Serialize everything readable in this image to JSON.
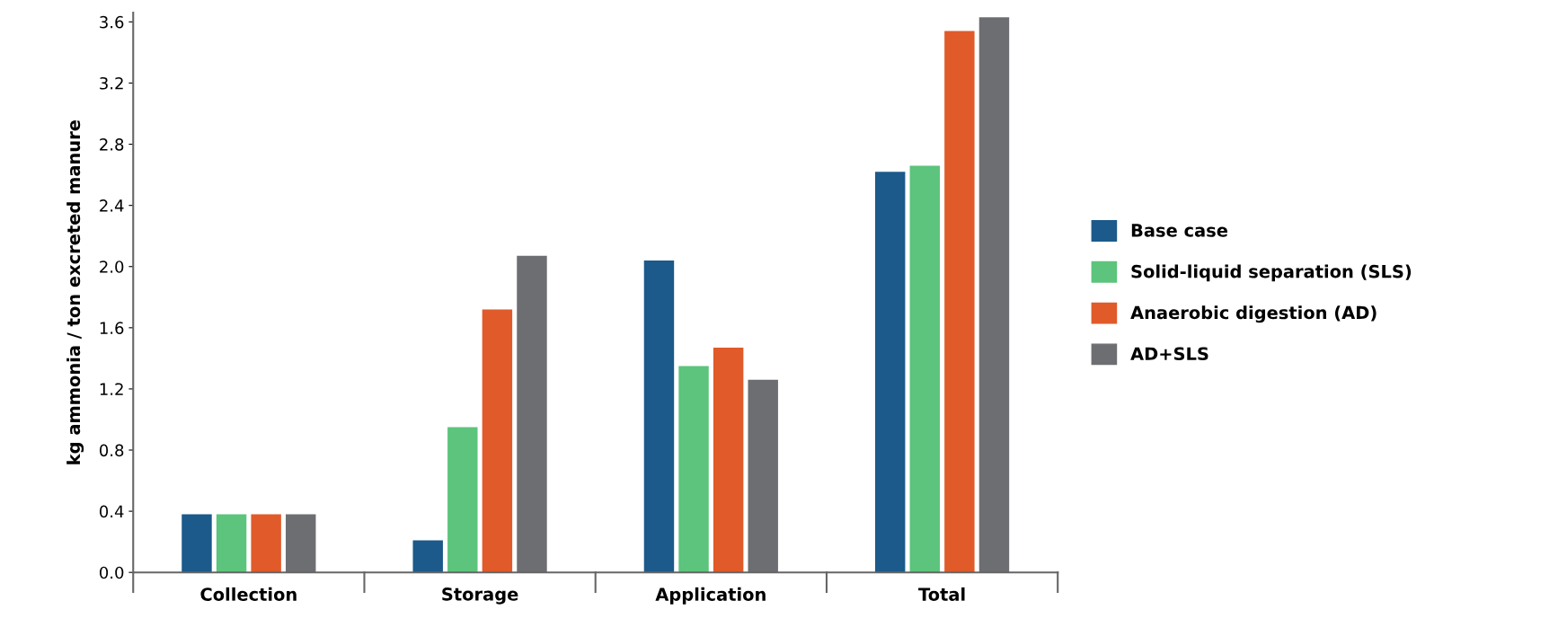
{
  "chart_data": {
    "type": "bar",
    "ylabel": "kg ammonia / ton excreted manure",
    "categories": [
      "Collection",
      "Storage",
      "Application",
      "Total"
    ],
    "series": [
      {
        "name": "Base case",
        "color": "#1b5a8a",
        "values": [
          0.38,
          0.21,
          2.04,
          2.62
        ]
      },
      {
        "name": "Solid-liquid separation (SLS)",
        "color": "#5cc47c",
        "values": [
          0.38,
          0.95,
          1.35,
          2.66
        ]
      },
      {
        "name": "Anaerobic digestion (AD)",
        "color": "#e05a2a",
        "values": [
          0.38,
          1.72,
          1.47,
          3.54
        ]
      },
      {
        "name": "AD+SLS",
        "color": "#6d6e71",
        "values": [
          0.38,
          2.07,
          1.26,
          3.63
        ]
      }
    ],
    "ylim": [
      0,
      3.66
    ],
    "yticks": [
      {
        "value": 0,
        "label": "0.0"
      },
      0.4,
      0.8,
      1.2,
      1.6,
      {
        "value": 2,
        "label": "2.0"
      },
      2.4,
      2.8,
      3.2,
      3.6
    ],
    "grid": false,
    "legend": "right"
  }
}
